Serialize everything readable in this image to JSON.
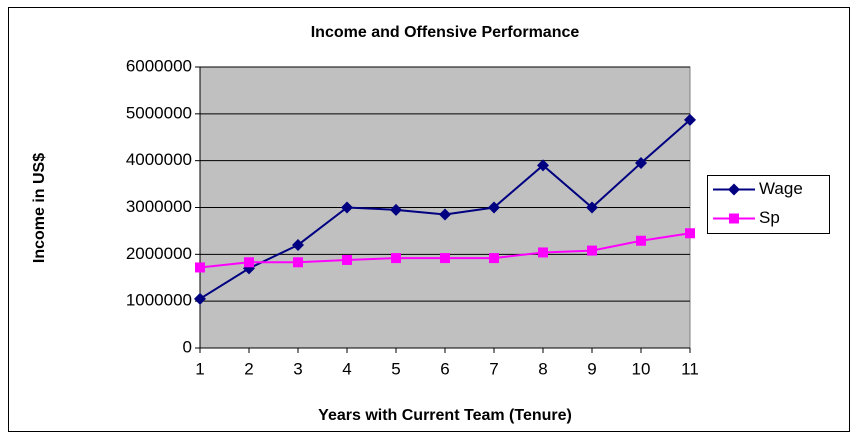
{
  "chart_data": {
    "type": "line",
    "title": "Income and Offensive Performance",
    "x_label": "Years with Current Team (Tenure)",
    "y_label": "Income in US$",
    "x": [
      1,
      2,
      3,
      4,
      5,
      6,
      7,
      8,
      9,
      10,
      11
    ],
    "series": [
      {
        "name": "Wage",
        "color": "#000080",
        "marker": "diamond",
        "values": [
          1050000,
          1700000,
          2200000,
          3000000,
          2950000,
          2850000,
          3000000,
          3900000,
          3000000,
          3950000,
          4870000
        ]
      },
      {
        "name": "Sp",
        "color": "#ff00ff",
        "marker": "square",
        "values": [
          1720000,
          1830000,
          1830000,
          1880000,
          1920000,
          1920000,
          1920000,
          2040000,
          2080000,
          2290000,
          2450000
        ]
      }
    ],
    "xlim": [
      1,
      11
    ],
    "xticks": [
      1,
      2,
      3,
      4,
      5,
      6,
      7,
      8,
      9,
      10,
      11
    ],
    "ylim": [
      0,
      6000000
    ],
    "yticks": [
      0,
      1000000,
      2000000,
      3000000,
      4000000,
      5000000,
      6000000
    ],
    "grid": true,
    "legend": "right",
    "plot_background": "#c0c0c0"
  }
}
